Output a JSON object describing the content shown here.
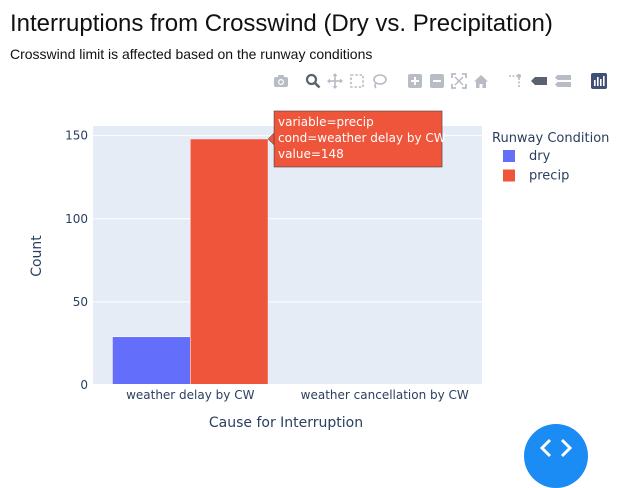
{
  "header": {
    "title": "Interruptions from Crosswind (Dry vs. Precipitation)",
    "subtitle": "Crosswind limit is affected based on the runway conditions"
  },
  "modebar": {
    "icons": [
      "camera-icon",
      "zoom-icon",
      "pan-icon",
      "box-select-icon",
      "lasso-select-icon",
      "zoom-in-icon",
      "zoom-out-icon",
      "autoscale-icon",
      "reset-axes-icon",
      "spike-lines-icon",
      "hover-closest-icon",
      "hover-compare-icon",
      "plotly-logo-icon"
    ]
  },
  "chart_data": {
    "type": "bar",
    "barmode": "group",
    "categories": [
      "weather delay by CW",
      "weather cancellation by CW"
    ],
    "series": [
      {
        "name": "dry",
        "values": [
          29,
          0
        ],
        "color": "#636efa"
      },
      {
        "name": "precip",
        "values": [
          148,
          0
        ],
        "color": "#ef553b"
      }
    ],
    "xlabel": "Cause for Interruption",
    "ylabel": "Count",
    "ylim": [
      0,
      155.8
    ],
    "yticks": [
      0,
      50,
      100,
      150
    ],
    "grid": true,
    "plot_bgcolor": "#e5ecf6",
    "legend": {
      "title": "Runway Condition",
      "position": "right"
    },
    "tooltip": {
      "lines": [
        "variable=precip",
        "cond=weather delay by CW",
        "value=148"
      ],
      "series_index": 1,
      "category_index": 0,
      "color": "#ef553b"
    }
  }
}
